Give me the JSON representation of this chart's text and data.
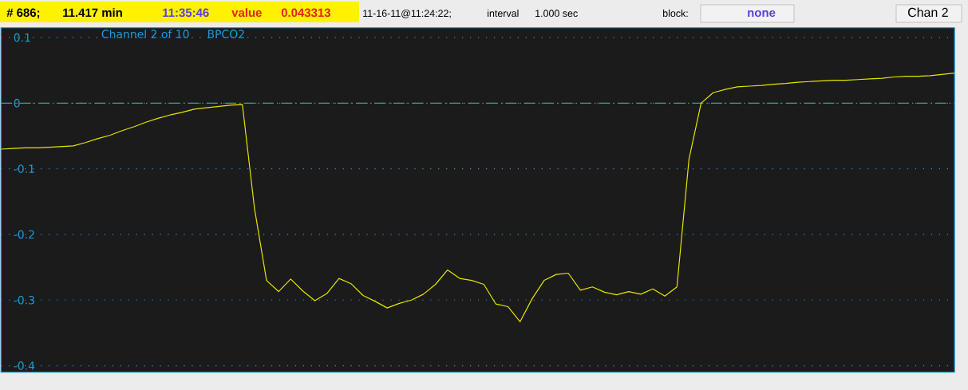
{
  "chart_data": {
    "type": "line",
    "title": "Channel 2 of 10",
    "subtitle": "BPCO2",
    "annotations": [
      "# 686;",
      "11.417 min",
      "11:35:46",
      "value",
      "0.043313",
      "11-16-11@11:24:22;",
      "interval",
      "1.000 sec",
      "block:",
      "none",
      "Chan 2"
    ],
    "categories": [
      null,
      null,
      null,
      null,
      null,
      null,
      null,
      null,
      null,
      null,
      null,
      null,
      null,
      null,
      null,
      null,
      null,
      null,
      null,
      null,
      null,
      null,
      null,
      null,
      null,
      null,
      null,
      null,
      null,
      null,
      null,
      null,
      null,
      null,
      null,
      null,
      null,
      null,
      null,
      null,
      null,
      null,
      null,
      null,
      null,
      null,
      null,
      null,
      null,
      null,
      null,
      null,
      null,
      null,
      null,
      null,
      null,
      null,
      null,
      null,
      null,
      null,
      null,
      null,
      null,
      null,
      null,
      null,
      null,
      null,
      null,
      null,
      null,
      null,
      null,
      null,
      null,
      null,
      null,
      null
    ],
    "series": [
      {
        "color": "#e6e600",
        "values": [
          -0.07,
          -0.069,
          -0.068,
          -0.068,
          -0.067,
          -0.066,
          -0.065,
          -0.06,
          -0.054,
          -0.049,
          -0.042,
          -0.036,
          -0.029,
          -0.023,
          -0.018,
          -0.014,
          -0.009,
          -0.007,
          -0.005,
          -0.003,
          -0.002,
          -0.16,
          -0.27,
          -0.287,
          -0.268,
          -0.286,
          -0.301,
          -0.29,
          -0.267,
          -0.275,
          -0.293,
          -0.302,
          -0.312,
          -0.305,
          -0.3,
          -0.291,
          -0.276,
          -0.254,
          -0.267,
          -0.27,
          -0.276,
          -0.306,
          -0.31,
          -0.333,
          -0.298,
          -0.27,
          -0.261,
          -0.259,
          -0.285,
          -0.28,
          -0.288,
          -0.292,
          -0.287,
          -0.291,
          -0.283,
          -0.294,
          -0.28,
          -0.085,
          0.0,
          0.016,
          0.021,
          0.025,
          0.026,
          0.027,
          0.029,
          0.03,
          0.032,
          0.033,
          0.034,
          0.035,
          0.035,
          0.036,
          0.037,
          0.038,
          0.04,
          0.041,
          0.041,
          0.042,
          0.044,
          0.046
        ]
      }
    ],
    "ylim": [
      -0.41,
      0.115
    ],
    "yticks": [
      0.1,
      0,
      -0.1,
      -0.2,
      -0.3,
      -0.4
    ],
    "grid": "y",
    "tick_labels": "y",
    "ref_lines": [
      {
        "axis": "y",
        "value": 0,
        "color": "#4a9a86",
        "line_style": "dashed"
      }
    ]
  }
}
